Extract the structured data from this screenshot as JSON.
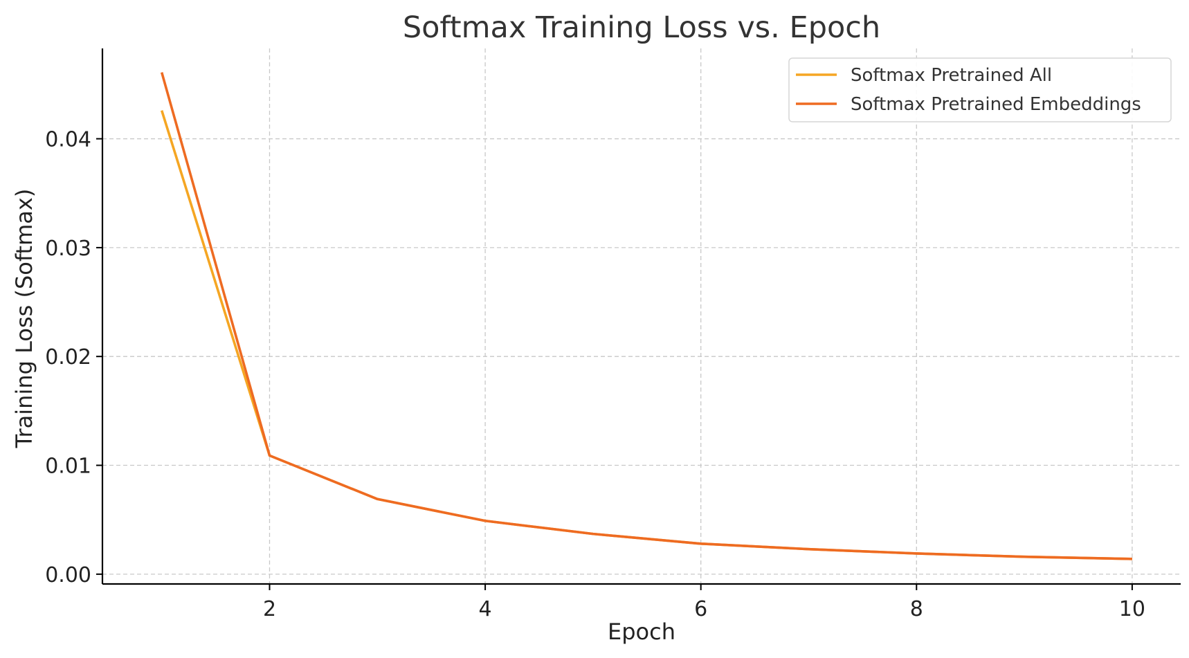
{
  "chart_data": {
    "type": "line",
    "title": "Softmax Training Loss vs. Epoch",
    "xlabel": "Epoch",
    "ylabel": "Training Loss (Softmax)",
    "x": [
      1,
      2,
      3,
      4,
      5,
      6,
      7,
      8,
      9,
      10
    ],
    "xlim": [
      0.45,
      10.45
    ],
    "ylim": [
      -0.0009,
      0.0483
    ],
    "xticks": [
      2,
      4,
      6,
      8,
      10
    ],
    "xtick_labels": [
      "2",
      "4",
      "6",
      "8",
      "10"
    ],
    "yticks": [
      0.0,
      0.01,
      0.02,
      0.03,
      0.04
    ],
    "ytick_labels": [
      "0.00",
      "0.01",
      "0.02",
      "0.03",
      "0.04"
    ],
    "grid": true,
    "legend_position": "top-right",
    "series": [
      {
        "name": "Softmax Pretrained All",
        "color": "#F5A623",
        "values": [
          0.0426,
          0.0109,
          0.0069,
          0.0049,
          0.0037,
          0.0028,
          0.0023,
          0.0019,
          0.0016,
          0.0014
        ]
      },
      {
        "name": "Softmax Pretrained Embeddings",
        "color": "#EE6B22",
        "values": [
          0.0461,
          0.0109,
          0.0069,
          0.0049,
          0.0037,
          0.0028,
          0.0023,
          0.0019,
          0.0016,
          0.0014
        ]
      }
    ]
  }
}
